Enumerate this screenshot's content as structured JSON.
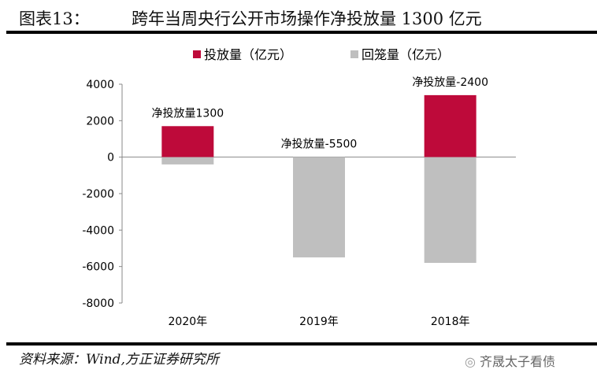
{
  "header": {
    "figure_label": "图表13：",
    "title": "跨年当周央行公开市场操作净投放量 1300 亿元"
  },
  "footer": {
    "source": "资料来源：Wind,方正证券研究所",
    "watermark": "齐晟太子看债"
  },
  "chart_data": {
    "type": "bar",
    "stacked": true,
    "categories": [
      "2020年",
      "2019年",
      "2018年"
    ],
    "series": [
      {
        "name": "投放量（亿元）",
        "values": [
          1700,
          0,
          3400
        ],
        "color": "#BE0A3A"
      },
      {
        "name": "回笼量（亿元）",
        "values": [
          -400,
          -5500,
          -5800
        ],
        "color": "#BFBFBF"
      }
    ],
    "annotations": [
      "净投放量1300",
      "净投放量-5500",
      "净投放量-2400"
    ],
    "ylim": [
      -8000,
      4000
    ],
    "yticks": [
      4000,
      2000,
      0,
      -2000,
      -4000,
      -6000,
      -8000
    ],
    "grid": false,
    "legend": "top"
  }
}
